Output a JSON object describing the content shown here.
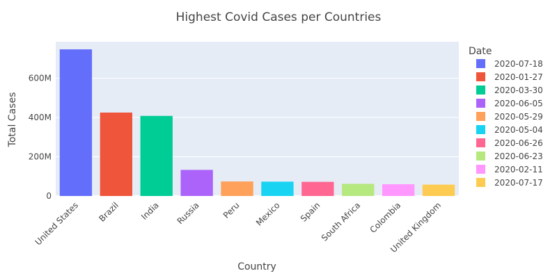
{
  "chart_data": {
    "type": "bar",
    "title": "Highest Covid Cases per Countries",
    "xlabel": "Country",
    "ylabel": "Total Cases",
    "categories": [
      "United States",
      "Brazil",
      "India",
      "Russia",
      "Peru",
      "Mexico",
      "Spain",
      "South Africa",
      "Colombia",
      "United Kingdom"
    ],
    "series": [
      {
        "name": "2020-07-18",
        "category": "United States",
        "value": 747000000,
        "color": "#636efa"
      },
      {
        "name": "2020-01-27",
        "category": "Brazil",
        "value": 425000000,
        "color": "#ef553b"
      },
      {
        "name": "2020-03-30",
        "category": "India",
        "value": 408000000,
        "color": "#00cc96"
      },
      {
        "name": "2020-06-05",
        "category": "Russia",
        "value": 133000000,
        "color": "#ab63fa"
      },
      {
        "name": "2020-05-29",
        "category": "Peru",
        "value": 74000000,
        "color": "#ffa15a"
      },
      {
        "name": "2020-05-04",
        "category": "Mexico",
        "value": 73000000,
        "color": "#19d3f3"
      },
      {
        "name": "2020-06-26",
        "category": "Spain",
        "value": 72000000,
        "color": "#ff6692"
      },
      {
        "name": "2020-06-23",
        "category": "South Africa",
        "value": 62000000,
        "color": "#b6e880"
      },
      {
        "name": "2020-02-11",
        "category": "Colombia",
        "value": 60000000,
        "color": "#ff97ff"
      },
      {
        "name": "2020-07-17",
        "category": "United Kingdom",
        "value": 58000000,
        "color": "#fecb52"
      }
    ],
    "ylim": [
      0,
      786000000
    ],
    "yticks": [
      0,
      200000000,
      400000000,
      600000000
    ],
    "ytick_labels": [
      "0",
      "200M",
      "400M",
      "600M"
    ],
    "grid": true,
    "plot_background": "#e5ecf6",
    "legend": {
      "title": "Date",
      "position": "right"
    }
  }
}
